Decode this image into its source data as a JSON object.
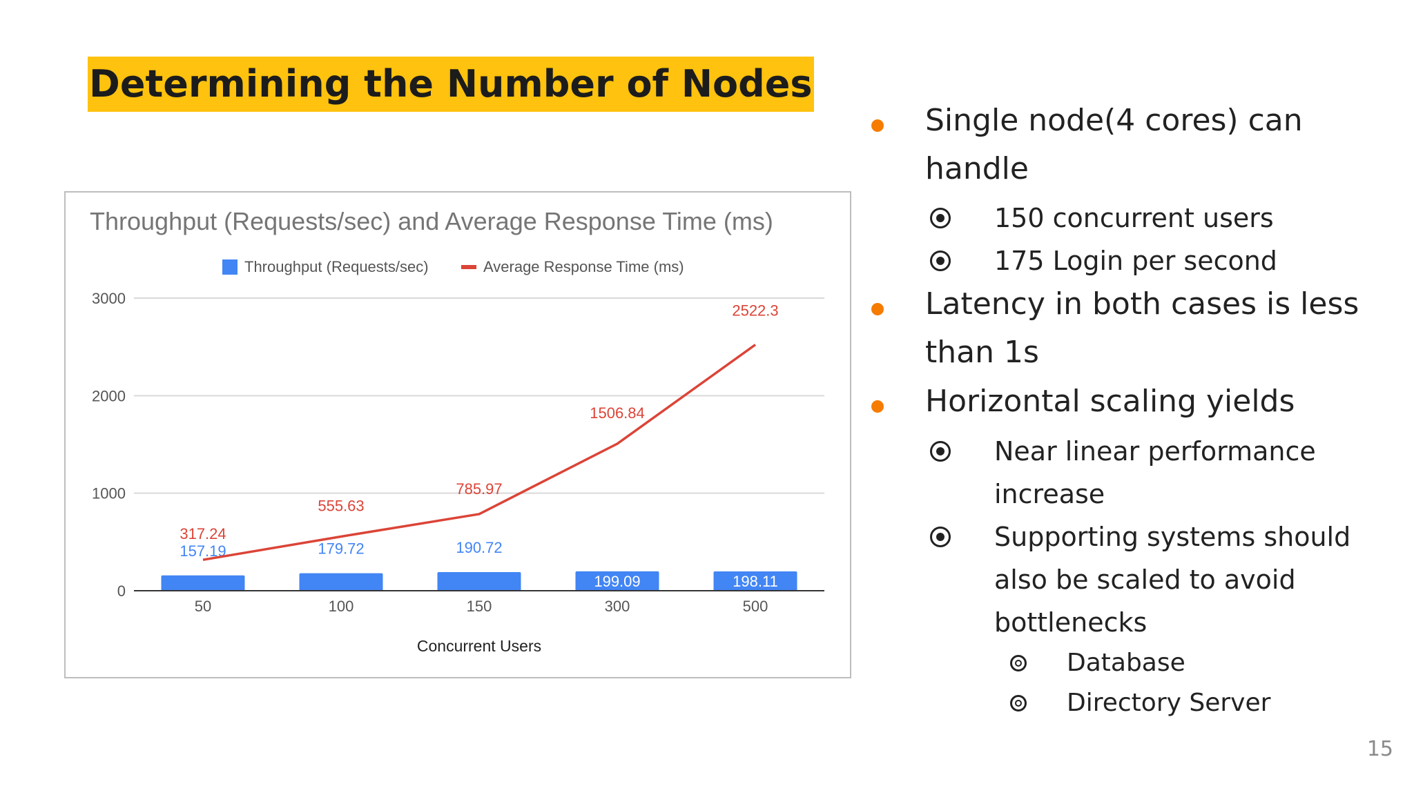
{
  "slide": {
    "title": "Determining the Number of Nodes",
    "page_number": "15",
    "title_highlight_color": "#FFC20E",
    "bullet_color": "#F57C00"
  },
  "bullets": [
    {
      "text": "Single node(4 cores) can handle",
      "children": [
        {
          "text": "150 concurrent users"
        },
        {
          "text": "175 Login per second"
        }
      ]
    },
    {
      "text": "Latency in both cases is less than 1s",
      "children": []
    },
    {
      "text": "Horizontal scaling yields",
      "children": [
        {
          "text": "Near linear performance increase"
        },
        {
          "text": "Supporting systems should also be scaled to avoid bottlenecks",
          "children": [
            {
              "text": "Database"
            },
            {
              "text": "Directory Server"
            }
          ]
        }
      ]
    }
  ],
  "chart_data": {
    "type": "bar",
    "title": "Throughput (Requests/sec) and Average Response Time (ms)",
    "xlabel": "Concurrent Users",
    "ylabel": "",
    "categories": [
      "50",
      "100",
      "150",
      "300",
      "500"
    ],
    "ylim": [
      0,
      3000
    ],
    "yticks": [
      0,
      1000,
      2000,
      3000
    ],
    "grid": true,
    "legend": "top",
    "series": [
      {
        "name": "Throughput (Requests/sec)",
        "type": "bar",
        "color": "#4285F4",
        "values": [
          157.19,
          179.72,
          190.72,
          199.09,
          198.11
        ],
        "labels": [
          "157.19",
          "179.72",
          "190.72",
          "199.09",
          "198.11"
        ]
      },
      {
        "name": "Average Response Time (ms)",
        "type": "line",
        "color": "#DB4437",
        "values": [
          317.24,
          555.63,
          785.97,
          1506.84,
          2522.3
        ],
        "labels": [
          "317.24",
          "555.63",
          "785.97",
          "1506.84",
          "2522.3"
        ]
      }
    ]
  }
}
